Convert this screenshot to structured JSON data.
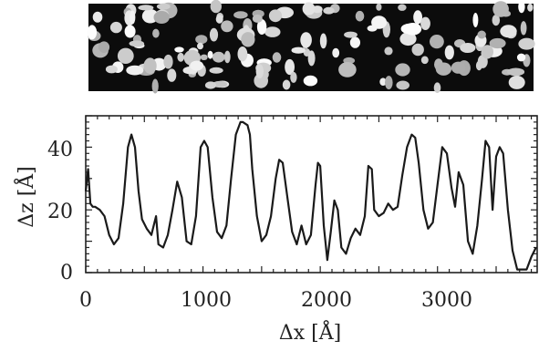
{
  "chart_data": {
    "type": "line",
    "title": "",
    "xlabel": "Δx [Å]",
    "ylabel": "Δz [Å]",
    "xlim": [
      0,
      3850
    ],
    "ylim": [
      0,
      50
    ],
    "x_ticks": [
      "0",
      "1000",
      "2000",
      "3000"
    ],
    "y_ticks": [
      "0",
      "20",
      "40"
    ],
    "grid": false,
    "legend": "none",
    "line_color": "#1a1a1a",
    "image_strip": "grayscale AFM/STM topography image showing bright islands on a dark background",
    "series": [
      {
        "x": [
          0,
          20,
          40,
          60,
          80,
          120,
          160,
          200,
          240,
          280,
          320,
          360,
          390,
          420,
          450,
          480,
          520,
          560,
          600,
          620,
          660,
          700,
          740,
          780,
          820,
          860,
          900,
          940,
          980,
          1010,
          1040,
          1080,
          1120,
          1160,
          1200,
          1240,
          1280,
          1320,
          1340,
          1380,
          1400,
          1420,
          1460,
          1500,
          1540,
          1580,
          1620,
          1650,
          1680,
          1720,
          1760,
          1800,
          1840,
          1880,
          1920,
          1960,
          1980,
          2000,
          2030,
          2060,
          2090,
          2120,
          2150,
          2180,
          2220,
          2260,
          2300,
          2340,
          2380,
          2410,
          2440,
          2460,
          2500,
          2540,
          2580,
          2620,
          2660,
          2700,
          2740,
          2780,
          2810,
          2840,
          2880,
          2920,
          2960,
          3000,
          3040,
          3080,
          3120,
          3150,
          3180,
          3220,
          3260,
          3300,
          3340,
          3380,
          3410,
          3440,
          3470,
          3500,
          3530,
          3560,
          3600,
          3640,
          3680,
          3720,
          3760,
          3800,
          3840
        ],
        "y": [
          26,
          33,
          22,
          21,
          21,
          20,
          18,
          12,
          9,
          11,
          22,
          40,
          44,
          40,
          26,
          17,
          14,
          12,
          18,
          9,
          8,
          12,
          20,
          29,
          24,
          10,
          9,
          18,
          40,
          42,
          40,
          24,
          13,
          11,
          15,
          30,
          44,
          48,
          48,
          47,
          44,
          33,
          18,
          10,
          12,
          18,
          30,
          36,
          35,
          24,
          13,
          9,
          15,
          9,
          12,
          28,
          35,
          34,
          15,
          4,
          13,
          23,
          20,
          8,
          6,
          11,
          14,
          12,
          18,
          34,
          33,
          20,
          18,
          19,
          22,
          20,
          21,
          31,
          40,
          44,
          43,
          35,
          20,
          14,
          16,
          28,
          40,
          38,
          27,
          21,
          32,
          28,
          10,
          6,
          15,
          30,
          42,
          40,
          20,
          37,
          40,
          38,
          20,
          7,
          1,
          1,
          1,
          5,
          8
        ]
      }
    ]
  }
}
